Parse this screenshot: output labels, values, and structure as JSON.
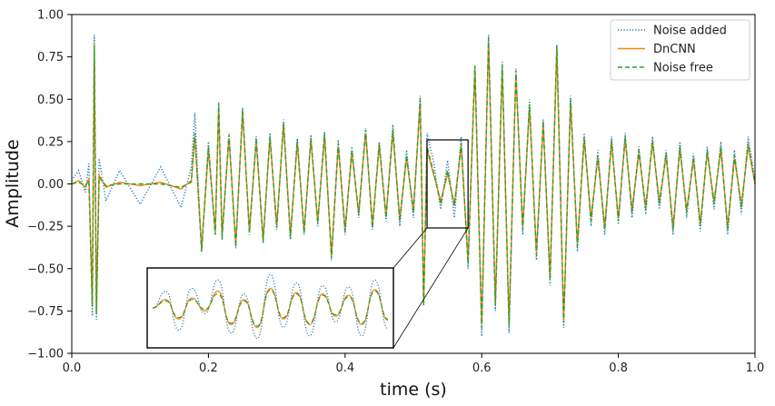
{
  "chart_data": {
    "type": "line",
    "title": "",
    "xlabel": "time (s)",
    "ylabel": "Amplitude",
    "xlim": [
      0.0,
      1.0
    ],
    "ylim": [
      -1.0,
      1.0
    ],
    "xticks": [
      "0.0",
      "0.2",
      "0.4",
      "0.6",
      "0.8",
      "1.0"
    ],
    "yticks": [
      "1.00",
      "0.75",
      "0.50",
      "0.25",
      "0.00",
      "−0.25",
      "−0.50",
      "−0.75",
      "−1.00"
    ],
    "grid": false,
    "legend_position": "top-right",
    "series": [
      {
        "name": "Noise added",
        "color": "#1f77b4",
        "style": "dotted",
        "x": [
          0.0,
          0.01,
          0.02,
          0.025,
          0.03,
          0.033,
          0.036,
          0.04,
          0.05,
          0.07,
          0.1,
          0.13,
          0.16,
          0.175,
          0.18,
          0.19,
          0.2,
          0.21,
          0.215,
          0.22,
          0.23,
          0.24,
          0.25,
          0.26,
          0.27,
          0.28,
          0.29,
          0.3,
          0.31,
          0.32,
          0.33,
          0.34,
          0.35,
          0.36,
          0.37,
          0.38,
          0.39,
          0.4,
          0.41,
          0.42,
          0.43,
          0.44,
          0.45,
          0.46,
          0.47,
          0.48,
          0.49,
          0.5,
          0.51,
          0.515,
          0.52,
          0.53,
          0.54,
          0.55,
          0.56,
          0.57,
          0.58,
          0.59,
          0.6,
          0.61,
          0.62,
          0.63,
          0.64,
          0.65,
          0.66,
          0.67,
          0.68,
          0.69,
          0.7,
          0.71,
          0.72,
          0.73,
          0.74,
          0.75,
          0.76,
          0.77,
          0.78,
          0.79,
          0.8,
          0.81,
          0.82,
          0.83,
          0.84,
          0.85,
          0.86,
          0.87,
          0.88,
          0.89,
          0.9,
          0.91,
          0.92,
          0.93,
          0.94,
          0.95,
          0.96,
          0.97,
          0.98,
          0.99,
          1.0
        ],
        "y": [
          0.02,
          0.08,
          -0.05,
          0.12,
          -0.78,
          0.88,
          -0.8,
          0.15,
          -0.1,
          0.08,
          -0.12,
          0.1,
          -0.14,
          0.1,
          0.42,
          -0.4,
          0.25,
          -0.3,
          0.47,
          -0.33,
          0.3,
          -0.38,
          0.45,
          -0.3,
          0.28,
          -0.35,
          0.3,
          -0.27,
          0.38,
          -0.33,
          0.27,
          -0.3,
          0.29,
          -0.25,
          0.31,
          -0.45,
          0.26,
          -0.3,
          0.22,
          -0.2,
          0.33,
          -0.27,
          0.25,
          -0.22,
          0.35,
          -0.25,
          0.2,
          -0.2,
          0.52,
          -0.72,
          0.3,
          0.12,
          -0.15,
          0.14,
          -0.2,
          0.28,
          -0.5,
          0.7,
          -0.9,
          0.88,
          -0.75,
          0.72,
          -0.88,
          0.68,
          -0.3,
          0.5,
          -0.45,
          0.38,
          -0.6,
          0.82,
          -0.85,
          0.52,
          -0.4,
          0.3,
          -0.25,
          0.2,
          -0.3,
          0.28,
          -0.24,
          0.3,
          -0.2,
          0.22,
          -0.18,
          0.28,
          -0.15,
          0.2,
          -0.3,
          0.25,
          -0.2,
          0.18,
          -0.28,
          0.22,
          -0.15,
          0.25,
          -0.3,
          0.2,
          -0.18,
          0.28,
          0.02
        ]
      },
      {
        "name": "DnCNN",
        "color": "#ff7f0e",
        "style": "solid",
        "x": [
          0.0,
          0.01,
          0.02,
          0.025,
          0.03,
          0.033,
          0.036,
          0.04,
          0.05,
          0.07,
          0.1,
          0.13,
          0.16,
          0.175,
          0.18,
          0.19,
          0.2,
          0.21,
          0.215,
          0.22,
          0.23,
          0.24,
          0.25,
          0.26,
          0.27,
          0.28,
          0.29,
          0.3,
          0.31,
          0.32,
          0.33,
          0.34,
          0.35,
          0.36,
          0.37,
          0.38,
          0.39,
          0.4,
          0.41,
          0.42,
          0.43,
          0.44,
          0.45,
          0.46,
          0.47,
          0.48,
          0.49,
          0.5,
          0.51,
          0.515,
          0.52,
          0.53,
          0.54,
          0.55,
          0.56,
          0.57,
          0.58,
          0.59,
          0.6,
          0.61,
          0.62,
          0.63,
          0.64,
          0.65,
          0.66,
          0.67,
          0.68,
          0.69,
          0.7,
          0.71,
          0.72,
          0.73,
          0.74,
          0.75,
          0.76,
          0.77,
          0.78,
          0.79,
          0.8,
          0.81,
          0.82,
          0.83,
          0.84,
          0.85,
          0.86,
          0.87,
          0.88,
          0.89,
          0.9,
          0.91,
          0.92,
          0.93,
          0.94,
          0.95,
          0.96,
          0.97,
          0.98,
          0.99,
          1.0
        ],
        "y": [
          0.0,
          0.02,
          -0.02,
          0.03,
          -0.7,
          0.83,
          -0.76,
          0.05,
          -0.02,
          0.01,
          -0.01,
          0.01,
          -0.03,
          0.02,
          0.28,
          -0.38,
          0.2,
          -0.28,
          0.45,
          -0.3,
          0.27,
          -0.35,
          0.42,
          -0.27,
          0.25,
          -0.33,
          0.27,
          -0.24,
          0.35,
          -0.3,
          0.24,
          -0.28,
          0.26,
          -0.22,
          0.28,
          -0.42,
          0.22,
          -0.26,
          0.18,
          -0.17,
          0.3,
          -0.24,
          0.22,
          -0.18,
          0.3,
          -0.2,
          0.15,
          -0.15,
          0.48,
          -0.7,
          0.2,
          0.05,
          -0.1,
          0.06,
          -0.12,
          0.22,
          -0.45,
          0.68,
          -0.83,
          0.84,
          -0.7,
          0.68,
          -0.82,
          0.65,
          -0.25,
          0.45,
          -0.4,
          0.35,
          -0.55,
          0.8,
          -0.8,
          0.48,
          -0.35,
          0.26,
          -0.2,
          0.15,
          -0.25,
          0.24,
          -0.2,
          0.26,
          -0.15,
          0.18,
          -0.13,
          0.24,
          -0.1,
          0.16,
          -0.25,
          0.2,
          -0.15,
          0.14,
          -0.23,
          0.18,
          -0.1,
          0.2,
          -0.25,
          0.15,
          -0.12,
          0.22,
          0.0
        ]
      },
      {
        "name": "Noise free",
        "color": "#2ca02c",
        "style": "dashed",
        "x": [
          0.0,
          0.01,
          0.02,
          0.025,
          0.03,
          0.033,
          0.036,
          0.04,
          0.05,
          0.07,
          0.1,
          0.13,
          0.16,
          0.175,
          0.18,
          0.19,
          0.2,
          0.21,
          0.215,
          0.22,
          0.23,
          0.24,
          0.25,
          0.26,
          0.27,
          0.28,
          0.29,
          0.3,
          0.31,
          0.32,
          0.33,
          0.34,
          0.35,
          0.36,
          0.37,
          0.38,
          0.39,
          0.4,
          0.41,
          0.42,
          0.43,
          0.44,
          0.45,
          0.46,
          0.47,
          0.48,
          0.49,
          0.5,
          0.51,
          0.515,
          0.52,
          0.53,
          0.54,
          0.55,
          0.56,
          0.57,
          0.58,
          0.59,
          0.6,
          0.61,
          0.62,
          0.63,
          0.64,
          0.65,
          0.66,
          0.67,
          0.68,
          0.69,
          0.7,
          0.71,
          0.72,
          0.73,
          0.74,
          0.75,
          0.76,
          0.77,
          0.78,
          0.79,
          0.8,
          0.81,
          0.82,
          0.83,
          0.84,
          0.85,
          0.86,
          0.87,
          0.88,
          0.89,
          0.9,
          0.91,
          0.92,
          0.93,
          0.94,
          0.95,
          0.96,
          0.97,
          0.98,
          0.99,
          1.0
        ],
        "y": [
          0.0,
          0.01,
          -0.01,
          0.02,
          -0.72,
          0.82,
          -0.77,
          0.04,
          -0.01,
          0.0,
          0.0,
          0.0,
          -0.02,
          0.01,
          0.3,
          -0.4,
          0.22,
          -0.3,
          0.48,
          -0.32,
          0.29,
          -0.37,
          0.44,
          -0.29,
          0.27,
          -0.34,
          0.28,
          -0.26,
          0.36,
          -0.32,
          0.26,
          -0.29,
          0.27,
          -0.23,
          0.3,
          -0.44,
          0.24,
          -0.28,
          0.2,
          -0.18,
          0.32,
          -0.26,
          0.24,
          -0.2,
          0.32,
          -0.22,
          0.17,
          -0.17,
          0.5,
          -0.72,
          0.22,
          0.06,
          -0.12,
          0.08,
          -0.13,
          0.24,
          -0.47,
          0.7,
          -0.85,
          0.86,
          -0.72,
          0.7,
          -0.84,
          0.67,
          -0.27,
          0.47,
          -0.42,
          0.37,
          -0.57,
          0.82,
          -0.82,
          0.5,
          -0.37,
          0.28,
          -0.22,
          0.17,
          -0.27,
          0.26,
          -0.22,
          0.28,
          -0.17,
          0.2,
          -0.15,
          0.26,
          -0.12,
          0.18,
          -0.27,
          0.22,
          -0.17,
          0.16,
          -0.25,
          0.2,
          -0.12,
          0.22,
          -0.27,
          0.17,
          -0.14,
          0.24,
          0.0
        ]
      }
    ],
    "inset": {
      "source_xlim": [
        0.52,
        0.58
      ],
      "source_ylim": [
        -0.26,
        0.26
      ],
      "series_y": {
        "Noise added": [
          0.0,
          0.12,
          -0.16,
          0.14,
          -0.04,
          0.2,
          -0.18,
          0.1,
          -0.22,
          0.24,
          -0.14,
          0.18,
          -0.2,
          0.16,
          -0.1,
          0.15,
          -0.2,
          0.2,
          -0.15
        ],
        "DnCNN": [
          0.0,
          0.06,
          -0.08,
          0.07,
          -0.02,
          0.12,
          -0.12,
          0.06,
          -0.14,
          0.14,
          -0.08,
          0.11,
          -0.12,
          0.1,
          -0.06,
          0.09,
          -0.12,
          0.13,
          -0.09
        ],
        "Noise free": [
          0.0,
          0.05,
          -0.07,
          0.06,
          -0.01,
          0.1,
          -0.11,
          0.05,
          -0.13,
          0.13,
          -0.07,
          0.1,
          -0.11,
          0.09,
          -0.05,
          0.08,
          -0.11,
          0.12,
          -0.08
        ]
      }
    }
  }
}
